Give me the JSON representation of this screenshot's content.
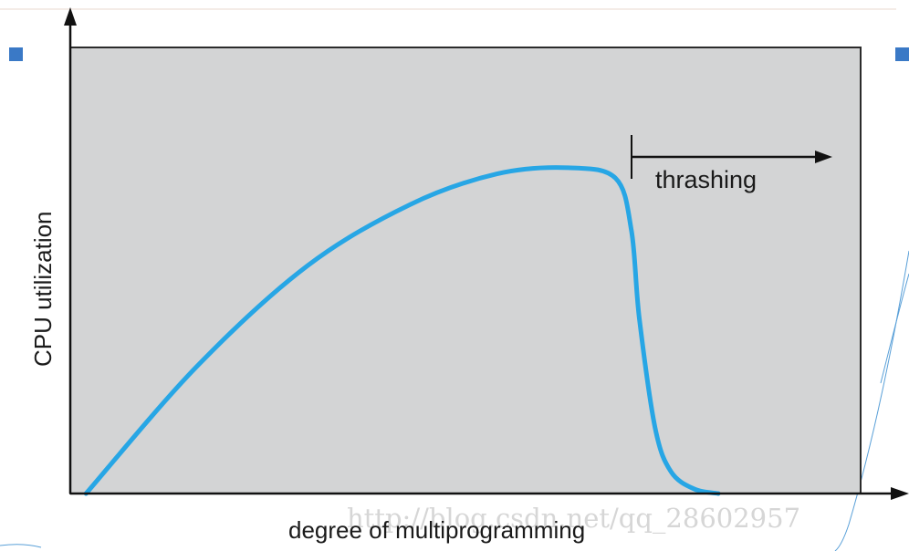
{
  "diagram": {
    "y_axis_label": "CPU utilization",
    "x_axis_label": "degree of multiprogramming",
    "annotation_label": "thrashing",
    "watermark": "http://blog.csdn.net/qq_28602957",
    "colors": {
      "plot_background": "#d3d4d5",
      "curve": "#27a6e5",
      "axes": "#111111",
      "slide_bullet": "#3a79c6",
      "slide_decoration": "#5aa0d8"
    },
    "curve_points": [
      [
        0.02,
        0.0
      ],
      [
        0.16,
        0.29
      ],
      [
        0.3,
        0.52
      ],
      [
        0.43,
        0.66
      ],
      [
        0.54,
        0.73
      ],
      [
        0.63,
        0.744
      ],
      [
        0.69,
        0.72
      ],
      [
        0.71,
        0.6
      ],
      [
        0.72,
        0.4
      ],
      [
        0.74,
        0.15
      ],
      [
        0.76,
        0.05
      ],
      [
        0.79,
        0.01
      ],
      [
        0.82,
        0.0
      ]
    ],
    "thrashing_starts_at": 0.71
  }
}
